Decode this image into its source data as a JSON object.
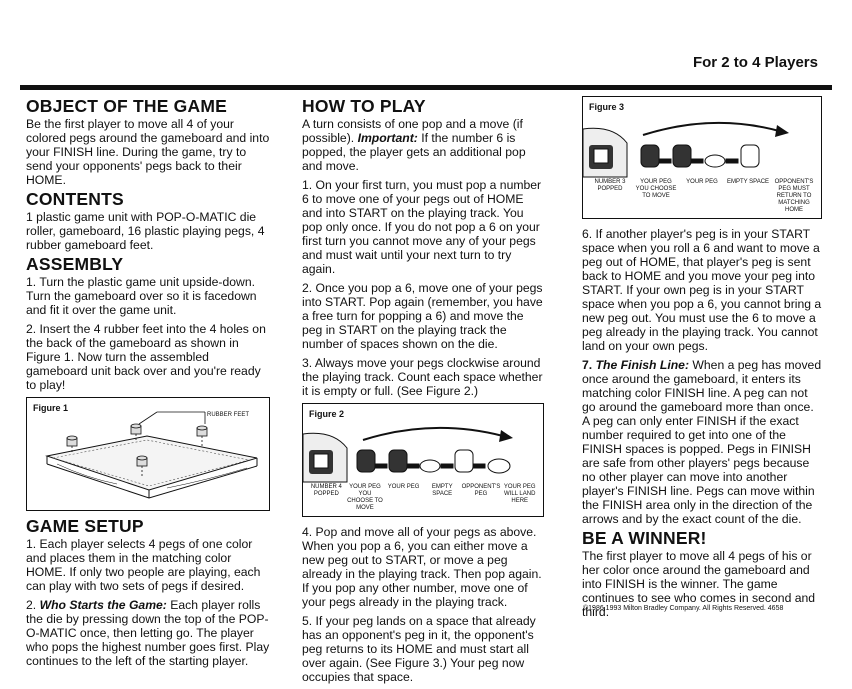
{
  "header": {
    "title": "For 2 to 4 Players"
  },
  "object": {
    "heading": "OBJECT OF THE GAME",
    "text": "Be the first player to move all 4 of your colored pegs around the gameboard and into your FINISH line. During the game, try to send your opponents' pegs back to their HOME."
  },
  "contents": {
    "heading": "CONTENTS",
    "text": "1 plastic game unit with POP-O-MATIC die roller, gameboard, 16 plastic playing pegs, 4 rubber gameboard feet."
  },
  "assembly": {
    "heading": "ASSEMBLY",
    "step1": "1. Turn the plastic game unit upside-down. Turn the gameboard over so it is facedown and fit it over the game unit.",
    "step2": "2. Insert the 4 rubber feet into the 4 holes on the back of the gameboard as shown in Figure 1. Now turn the assembled gameboard unit back over and you're ready to play!"
  },
  "figure1": {
    "label": "Figure 1",
    "callout": "RUBBER FEET"
  },
  "setup": {
    "heading": "GAME SETUP",
    "step1": "1. Each player selects 4 pegs of one color and places them in the matching color HOME. If only two people are playing, each can play with two sets of pegs if desired.",
    "step2_title": "Who Starts the Game:",
    "step2_num": "2.",
    "step2": "Each player rolls the die by pressing down the top of the POP-O-MATIC once, then letting go. The player who pops the highest number goes first. Play continues to the left of the starting player."
  },
  "howto": {
    "heading": "HOW TO PLAY",
    "intro": "A turn consists of one pop and a move (if possible).",
    "important_title": "Important:",
    "important": "If the number 6 is popped, the player gets an additional pop and move.",
    "step1": "1. On your first turn, you must pop a number 6 to move one of your pegs out of HOME and into START on the playing track. You pop only once. If you do not pop a 6 on your first turn you cannot move any of your pegs and must wait until your next turn to try again.",
    "step2": "2. Once you pop a 6, move one of your pegs into START. Pop again (remember, you have a free turn for popping a 6) and move the peg in START on the playing track the number of spaces shown on the die.",
    "step3": "3. Always move your pegs clockwise around the playing track. Count each space whether it is empty or full. (See Figure 2.)",
    "step4": "4. Pop and move all of your pegs as above. When you pop a 6, you can either move a new peg out to START, or move a peg already in the playing track. Then pop again. If you pop any other number, move one of your pegs already in the playing track.",
    "step5": "5. If your peg lands on a space that already has an opponent's peg in it, the opponent's peg returns to its HOME and must start all over again. (See Figure 3.) Your peg now occupies that space."
  },
  "figure2": {
    "label": "Figure 2",
    "captions": [
      "NUMBER 4 POPPED",
      "YOUR PEG YOU CHOOSE TO MOVE",
      "YOUR PEG",
      "EMPTY SPACE",
      "OPPONENT'S PEG",
      "YOUR PEG WILL LAND HERE"
    ]
  },
  "figure3": {
    "label": "Figure 3",
    "captions": [
      "NUMBER 3 POPPED",
      "YOUR PEG YOU CHOOSE TO MOVE",
      "YOUR PEG",
      "EMPTY SPACE",
      "OPPONENT'S PEG MUST RETURN TO MATCHING HOME"
    ]
  },
  "col3": {
    "step6": "6. If another player's peg is in your START space when you roll a 6 and want to move a peg out of HOME, that player's peg is sent back to HOME and you move your peg into START. If your own peg is in your START space when you pop a 6, you cannot bring a new peg out. You must use the 6 to move a peg already in the playing track. You cannot land on your own pegs.",
    "step7_num": "7.",
    "step7_title": "The Finish Line:",
    "step7": "When a peg has moved once around the gameboard, it enters its matching color FINISH line. A peg can not go around the gameboard more than once. A peg can only enter FINISH if the exact number required to get into one of the FINISH spaces is popped. Pegs in FINISH are safe from other players' pegs because no other player can move into another player's FINISH line. Pegs can move within the FINISH area only in the direction of the arrows and by the exact count of the die."
  },
  "winner": {
    "heading": "BE A WINNER!",
    "text": "The first player to move all 4 pegs of his or her color once around the gameboard and into FINISH is the winner. The game continues to see who comes in second and third."
  },
  "copyright": "©1986,1993 Milton Bradley Company. All Rights Reserved.   4658"
}
